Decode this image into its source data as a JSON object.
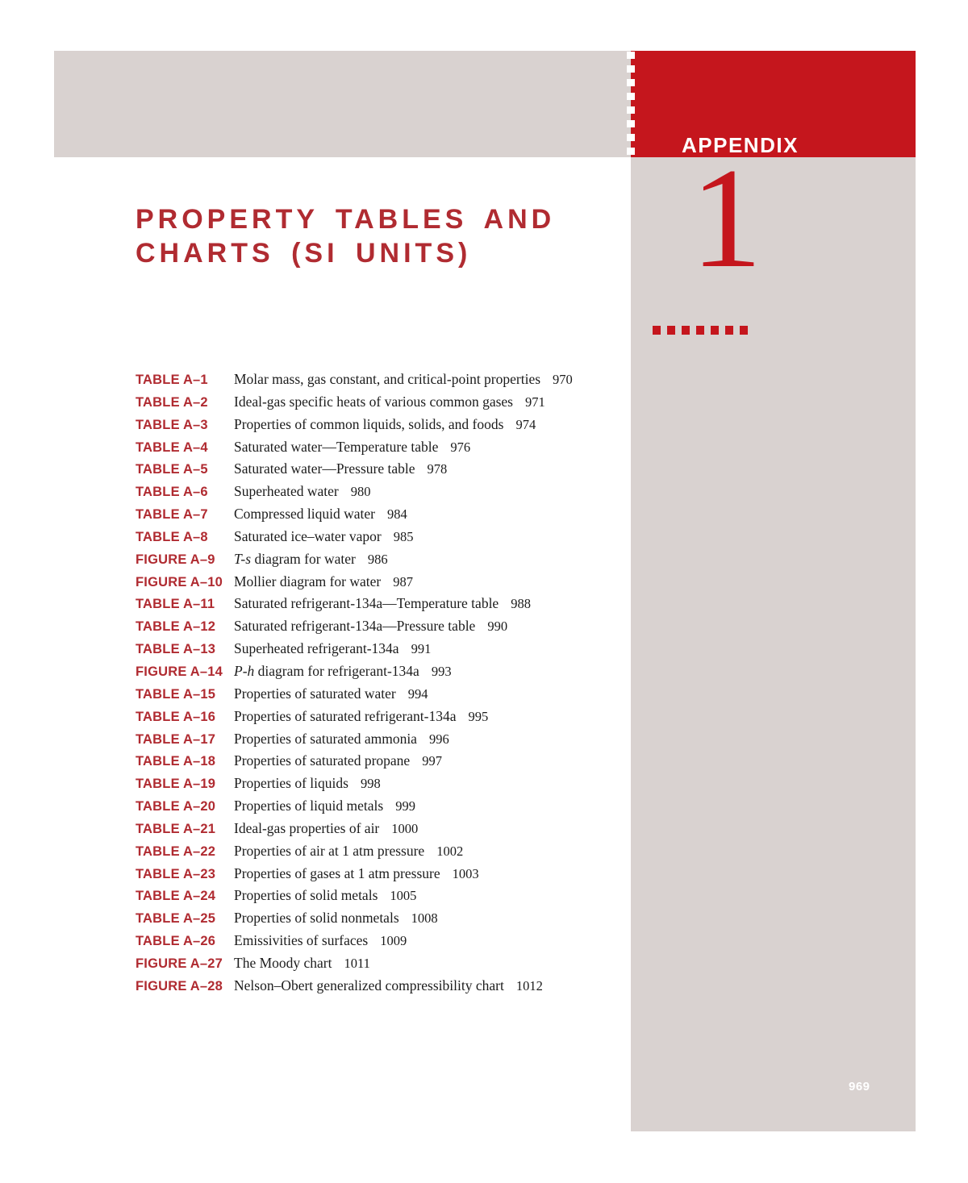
{
  "appendix": {
    "kicker": "APPENDIX",
    "number": "1"
  },
  "title": {
    "line1": "PROPERTY TABLES AND",
    "line2": "CHARTS (SI UNITS)"
  },
  "page": {
    "number": "969"
  },
  "colors": {
    "block_red": "#c5161d",
    "heading_red": "#b02b31",
    "panel_gray": "#d9d2d0",
    "text_ink": "#1c1c1c"
  },
  "decor": {
    "white_dash_count": 8,
    "red_dot_count": 7
  },
  "toc": {
    "rows": [
      {
        "label": "TABLE A–1",
        "parts": [
          {
            "t": "Molar mass, gas constant, and critical-point properties",
            "i": false
          }
        ],
        "page": "970"
      },
      {
        "label": "TABLE A–2",
        "parts": [
          {
            "t": "Ideal-gas specific heats of various common gases",
            "i": false
          }
        ],
        "page": "971"
      },
      {
        "label": "TABLE A–3",
        "parts": [
          {
            "t": "Properties of common liquids, solids, and foods",
            "i": false
          }
        ],
        "page": "974"
      },
      {
        "label": "TABLE A–4",
        "parts": [
          {
            "t": "Saturated water—Temperature table",
            "i": false
          }
        ],
        "page": "976"
      },
      {
        "label": "TABLE A–5",
        "parts": [
          {
            "t": "Saturated water—Pressure table",
            "i": false
          }
        ],
        "page": "978"
      },
      {
        "label": "TABLE A–6",
        "parts": [
          {
            "t": "Superheated water",
            "i": false
          }
        ],
        "page": "980"
      },
      {
        "label": "TABLE A–7",
        "parts": [
          {
            "t": "Compressed liquid water",
            "i": false
          }
        ],
        "page": "984"
      },
      {
        "label": "TABLE A–8",
        "parts": [
          {
            "t": "Saturated ice–water vapor",
            "i": false
          }
        ],
        "page": "985"
      },
      {
        "label": "FIGURE A–9",
        "parts": [
          {
            "t": "T-s",
            "i": true
          },
          {
            "t": " diagram for water",
            "i": false
          }
        ],
        "page": "986"
      },
      {
        "label": "FIGURE A–10",
        "parts": [
          {
            "t": "Mollier diagram for water",
            "i": false
          }
        ],
        "page": "987"
      },
      {
        "label": "TABLE A–11",
        "parts": [
          {
            "t": "Saturated refrigerant-134a—Temperature table",
            "i": false
          }
        ],
        "page": "988"
      },
      {
        "label": "TABLE A–12",
        "parts": [
          {
            "t": "Saturated refrigerant-134a—Pressure table",
            "i": false
          }
        ],
        "page": "990"
      },
      {
        "label": "TABLE A–13",
        "parts": [
          {
            "t": "Superheated refrigerant-134a",
            "i": false
          }
        ],
        "page": "991"
      },
      {
        "label": "FIGURE A–14",
        "parts": [
          {
            "t": "P-h",
            "i": true
          },
          {
            "t": " diagram for refrigerant-134a",
            "i": false
          }
        ],
        "page": "993"
      },
      {
        "label": "TABLE A–15",
        "parts": [
          {
            "t": "Properties of saturated water",
            "i": false
          }
        ],
        "page": "994"
      },
      {
        "label": "TABLE A–16",
        "parts": [
          {
            "t": "Properties of saturated refrigerant-134a",
            "i": false
          }
        ],
        "page": "995"
      },
      {
        "label": "TABLE A–17",
        "parts": [
          {
            "t": "Properties of saturated ammonia",
            "i": false
          }
        ],
        "page": "996"
      },
      {
        "label": "TABLE A–18",
        "parts": [
          {
            "t": "Properties of saturated propane",
            "i": false
          }
        ],
        "page": "997"
      },
      {
        "label": "TABLE A–19",
        "parts": [
          {
            "t": "Properties of liquids",
            "i": false
          }
        ],
        "page": "998"
      },
      {
        "label": "TABLE A–20",
        "parts": [
          {
            "t": "Properties of liquid metals",
            "i": false
          }
        ],
        "page": "999"
      },
      {
        "label": "TABLE A–21",
        "parts": [
          {
            "t": "Ideal-gas properties of air",
            "i": false
          }
        ],
        "page": "1000"
      },
      {
        "label": "TABLE A–22",
        "parts": [
          {
            "t": "Properties of air at 1 atm pressure",
            "i": false
          }
        ],
        "page": "1002"
      },
      {
        "label": "TABLE A–23",
        "parts": [
          {
            "t": "Properties of gases at 1 atm pressure",
            "i": false
          }
        ],
        "page": "1003"
      },
      {
        "label": "TABLE A–24",
        "parts": [
          {
            "t": "Properties of solid metals",
            "i": false
          }
        ],
        "page": "1005"
      },
      {
        "label": "TABLE A–25",
        "parts": [
          {
            "t": "Properties of solid nonmetals",
            "i": false
          }
        ],
        "page": "1008"
      },
      {
        "label": "TABLE A–26",
        "parts": [
          {
            "t": "Emissivities of surfaces",
            "i": false
          }
        ],
        "page": "1009"
      },
      {
        "label": "FIGURE A–27",
        "parts": [
          {
            "t": "The Moody chart",
            "i": false
          }
        ],
        "page": "1011"
      },
      {
        "label": "FIGURE A–28",
        "parts": [
          {
            "t": "Nelson–Obert generalized compressibility chart",
            "i": false
          }
        ],
        "page": "1012"
      }
    ]
  }
}
